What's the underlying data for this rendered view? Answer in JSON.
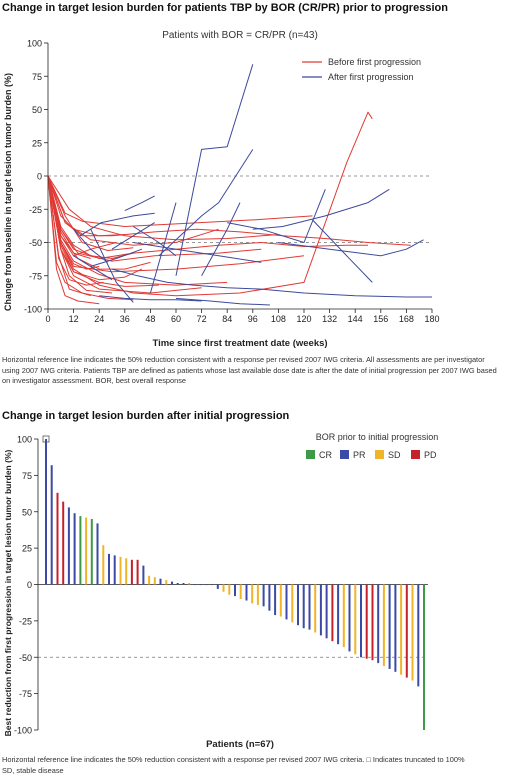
{
  "panel1": {
    "title": "Change in target lesion burden for patients TBP by BOR (CR/PR) prior to progression",
    "footnote_lines": [
      "Horizontal reference line indicates the 50% reduction consistent with a response per revised 2007 IWG criteria. All assessments are per investigator",
      "using 2007 IWG criteria. Patients TBP are defined as patients whose last available dose date is after the date of initial progression per 2007 IWG based",
      "on investigator assessment. BOR, best overall response"
    ]
  },
  "panel2": {
    "title": "Change in target lesion burden after initial progression",
    "footnote_lines": [
      "Horizontal reference line indicates the 50% reduction consistent with a response per revised 2007 IWG criteria. □ Indicates truncated to 100%",
      "SD, stable disease"
    ]
  },
  "colors": {
    "before": "#e03a35",
    "after": "#3d4a9c",
    "CR": "#3e9a47",
    "PR": "#3a4aa6",
    "SD": "#f0b429",
    "PD": "#c8202a",
    "refline": "#777777"
  },
  "chart_data": [
    {
      "type": "line",
      "subtitle": "Patients with BOR = CR/PR (n=43)",
      "xlabel": "Time since first treatment date (weeks)",
      "ylabel": "Change from baseline in target lesion tumor burden (%)",
      "xlim": [
        0,
        180
      ],
      "ylim": [
        -100,
        100
      ],
      "xticks": [
        0,
        12,
        24,
        36,
        48,
        60,
        72,
        84,
        96,
        108,
        120,
        132,
        144,
        156,
        168,
        180
      ],
      "yticks": [
        -100,
        -75,
        -50,
        -25,
        0,
        25,
        50,
        75,
        100
      ],
      "reference_lines": [
        0,
        -50
      ],
      "legend": [
        "Before first progression",
        "After first progression"
      ],
      "legend_position": "top-right",
      "series": [
        {
          "phase": "before",
          "x": [
            0,
            6,
            12,
            24,
            36,
            44
          ],
          "y": [
            0,
            -55,
            -72,
            -78,
            -76,
            -70
          ]
        },
        {
          "phase": "before",
          "x": [
            0,
            6,
            12,
            24,
            40,
            60,
            80,
            100,
            120,
            140,
            150
          ],
          "y": [
            0,
            -40,
            -55,
            -62,
            -58,
            -55,
            -52,
            -50,
            -53,
            -52,
            -52
          ]
        },
        {
          "phase": "before",
          "x": [
            0,
            8,
            16,
            30,
            50,
            70,
            90,
            110,
            130,
            150,
            170
          ],
          "y": [
            0,
            -35,
            -45,
            -45,
            -42,
            -40,
            -42,
            -45,
            -47,
            -50,
            -52
          ]
        },
        {
          "phase": "before",
          "x": [
            0,
            6,
            14,
            24,
            36,
            48
          ],
          "y": [
            0,
            -45,
            -62,
            -70,
            -70,
            -65
          ]
        },
        {
          "phase": "before",
          "x": [
            0,
            5,
            10,
            20
          ],
          "y": [
            0,
            -60,
            -85,
            -90
          ]
        },
        {
          "phase": "before",
          "x": [
            0,
            4,
            8,
            14,
            24
          ],
          "y": [
            0,
            -70,
            -90,
            -94,
            -96
          ]
        },
        {
          "phase": "before",
          "x": [
            0,
            6,
            12,
            30,
            60,
            90,
            120
          ],
          "y": [
            0,
            -50,
            -68,
            -72,
            -70,
            -66,
            -60
          ]
        },
        {
          "phase": "before",
          "x": [
            0,
            6,
            10,
            18,
            30
          ],
          "y": [
            0,
            -55,
            -75,
            -86,
            -88
          ]
        },
        {
          "phase": "before",
          "x": [
            0,
            8,
            20,
            40,
            60,
            80
          ],
          "y": [
            0,
            -35,
            -48,
            -52,
            -50,
            -40
          ]
        },
        {
          "phase": "before",
          "x": [
            0,
            6,
            12,
            24,
            36
          ],
          "y": [
            0,
            -30,
            -40,
            -45,
            -44
          ]
        },
        {
          "phase": "before",
          "x": [
            0,
            6,
            12,
            24,
            40,
            60,
            90,
            120,
            140,
            150,
            152
          ],
          "y": [
            0,
            -50,
            -70,
            -82,
            -88,
            -90,
            -88,
            -80,
            10,
            48,
            43
          ]
        },
        {
          "phase": "before",
          "x": [
            0,
            6,
            14,
            30,
            50,
            80,
            100
          ],
          "y": [
            0,
            -40,
            -58,
            -64,
            -60,
            -58,
            -55
          ]
        },
        {
          "phase": "before",
          "x": [
            0,
            8,
            16,
            36,
            60,
            96,
            124
          ],
          "y": [
            0,
            -28,
            -34,
            -38,
            -36,
            -33,
            -30
          ]
        },
        {
          "phase": "before",
          "x": [
            0,
            6,
            12,
            20,
            32
          ],
          "y": [
            0,
            -45,
            -60,
            -55,
            -50
          ]
        },
        {
          "phase": "before",
          "x": [
            0,
            4,
            8,
            16,
            28,
            40
          ],
          "y": [
            0,
            -65,
            -80,
            -88,
            -92,
            -93
          ]
        },
        {
          "phase": "before",
          "x": [
            0,
            6,
            12,
            24,
            48,
            72
          ],
          "y": [
            0,
            -55,
            -75,
            -85,
            -88,
            -84
          ]
        },
        {
          "phase": "before",
          "x": [
            0,
            6,
            12,
            20,
            30,
            40
          ],
          "y": [
            0,
            -38,
            -52,
            -60,
            -62,
            -58
          ]
        },
        {
          "phase": "before",
          "x": [
            0,
            10,
            20,
            36,
            60,
            84,
            108
          ],
          "y": [
            0,
            -25,
            -38,
            -45,
            -48,
            -47,
            -44
          ]
        },
        {
          "phase": "before",
          "x": [
            0,
            6,
            12,
            18,
            24
          ],
          "y": [
            0,
            -50,
            -66,
            -70,
            -68
          ]
        },
        {
          "phase": "before",
          "x": [
            0,
            5,
            10,
            18,
            26
          ],
          "y": [
            0,
            -62,
            -78,
            -82,
            -80
          ]
        },
        {
          "phase": "before",
          "x": [
            0,
            6,
            12,
            24,
            36,
            60,
            84
          ],
          "y": [
            0,
            -48,
            -64,
            -74,
            -80,
            -82,
            -80
          ]
        },
        {
          "phase": "before",
          "x": [
            0,
            8,
            16,
            28,
            40
          ],
          "y": [
            0,
            -30,
            -50,
            -56,
            -54
          ]
        },
        {
          "phase": "before",
          "x": [
            0,
            6,
            12,
            20
          ],
          "y": [
            0,
            -42,
            -58,
            -62
          ]
        },
        {
          "phase": "before",
          "x": [
            0,
            6,
            12,
            24,
            36,
            52
          ],
          "y": [
            0,
            -52,
            -72,
            -80,
            -83,
            -82
          ]
        },
        {
          "phase": "after",
          "x": [
            12,
            20,
            28
          ],
          "y": [
            -40,
            -55,
            -65
          ]
        },
        {
          "phase": "after",
          "x": [
            15,
            25,
            40,
            50
          ],
          "y": [
            -45,
            -35,
            -30,
            -28
          ]
        },
        {
          "phase": "after",
          "x": [
            20,
            26,
            32,
            40
          ],
          "y": [
            -40,
            -60,
            -80,
            -95
          ]
        },
        {
          "phase": "after",
          "x": [
            30,
            40,
            50
          ],
          "y": [
            -55,
            -45,
            -35
          ]
        },
        {
          "phase": "after",
          "x": [
            36,
            44,
            50
          ],
          "y": [
            -26,
            -20,
            -15
          ]
        },
        {
          "phase": "after",
          "x": [
            48,
            60
          ],
          "y": [
            -88,
            -20
          ]
        },
        {
          "phase": "after",
          "x": [
            52,
            60,
            72,
            80,
            96
          ],
          "y": [
            -60,
            -48,
            -30,
            -20,
            20
          ]
        },
        {
          "phase": "after",
          "x": [
            60,
            72,
            84,
            96
          ],
          "y": [
            -75,
            20,
            22,
            84
          ]
        },
        {
          "phase": "after",
          "x": [
            40,
            52,
            60
          ],
          "y": [
            -38,
            -50,
            -60
          ]
        },
        {
          "phase": "after",
          "x": [
            72,
            84,
            90
          ],
          "y": [
            -75,
            -40,
            -20
          ]
        },
        {
          "phase": "after",
          "x": [
            84,
            100,
            120,
            130
          ],
          "y": [
            -35,
            -40,
            -50,
            -10
          ]
        },
        {
          "phase": "after",
          "x": [
            96,
            110,
            130,
            150,
            160
          ],
          "y": [
            -40,
            -38,
            -30,
            -20,
            -10
          ]
        },
        {
          "phase": "after",
          "x": [
            100,
            120,
            144,
            168,
            180
          ],
          "y": [
            -85,
            -88,
            -90,
            -91,
            -91
          ]
        },
        {
          "phase": "after",
          "x": [
            24,
            36,
            48,
            60,
            72
          ],
          "y": [
            -90,
            -92,
            -93,
            -93,
            -94
          ]
        },
        {
          "phase": "after",
          "x": [
            30,
            42,
            56,
            68,
            84,
            100
          ],
          "y": [
            -70,
            -75,
            -80,
            -82,
            -84,
            -85
          ]
        },
        {
          "phase": "after",
          "x": [
            108,
            132,
            156,
            168,
            176
          ],
          "y": [
            -50,
            -55,
            -60,
            -55,
            -48
          ]
        },
        {
          "phase": "after",
          "x": [
            124,
            140,
            152
          ],
          "y": [
            -33,
            -60,
            -80
          ]
        },
        {
          "phase": "after",
          "x": [
            12,
            24,
            30
          ],
          "y": [
            -60,
            -72,
            -78
          ]
        },
        {
          "phase": "after",
          "x": [
            20,
            32,
            44
          ],
          "y": [
            -68,
            -62,
            -55
          ]
        },
        {
          "phase": "after",
          "x": [
            60,
            76,
            90,
            104
          ],
          "y": [
            -92,
            -94,
            -96,
            -97
          ]
        },
        {
          "phase": "after",
          "x": [
            40,
            60,
            80,
            100
          ],
          "y": [
            -50,
            -55,
            -60,
            -65
          ]
        }
      ]
    },
    {
      "type": "bar",
      "legend_title": "BOR prior to initial progression",
      "legend_position": "top-right",
      "legend": [
        "CR",
        "PR",
        "SD",
        "PD"
      ],
      "xlabel": "Patients (n=67)",
      "ylabel": "Best reduction from first progression in target lesion tumor burden (%)",
      "ylim": [
        -100,
        100
      ],
      "yticks": [
        -100,
        -75,
        -50,
        -25,
        0,
        25,
        50,
        75,
        100
      ],
      "reference_lines": [
        -50
      ],
      "truncated_marker_index": 0,
      "values": [
        100,
        82,
        63,
        57,
        53,
        49,
        47,
        46,
        45,
        42,
        27,
        21,
        20,
        19,
        18,
        17,
        17,
        13,
        6,
        5,
        4,
        3,
        2,
        1,
        1,
        1,
        0,
        0,
        0,
        0,
        -3,
        -5,
        -7,
        -8,
        -10,
        -11,
        -13,
        -14,
        -15,
        -18,
        -21,
        -22,
        -24,
        -26,
        -28,
        -30,
        -31,
        -33,
        -35,
        -37,
        -39,
        -41,
        -43,
        -46,
        -48,
        -50,
        -51,
        -52,
        -54,
        -56,
        -58,
        -60,
        -62,
        -64,
        -66,
        -70,
        -100
      ],
      "bor": [
        "PR",
        "PR",
        "PD",
        "PD",
        "PR",
        "PR",
        "CR",
        "SD",
        "CR",
        "PR",
        "SD",
        "PR",
        "PR",
        "SD",
        "SD",
        "PD",
        "PD",
        "PR",
        "SD",
        "SD",
        "PR",
        "SD",
        "PR",
        "PR",
        "PR",
        "SD",
        "PR",
        "PR",
        "PR",
        "PR",
        "PR",
        "SD",
        "SD",
        "PR",
        "SD",
        "PR",
        "SD",
        "SD",
        "PR",
        "PR",
        "PR",
        "SD",
        "PR",
        "SD",
        "PR",
        "PR",
        "PR",
        "SD",
        "PR",
        "PR",
        "PD",
        "PR",
        "SD",
        "PR",
        "SD",
        "PR",
        "PD",
        "PD",
        "PR",
        "SD",
        "PR",
        "PR",
        "SD",
        "PD",
        "SD",
        "PR",
        "CR"
      ]
    }
  ]
}
